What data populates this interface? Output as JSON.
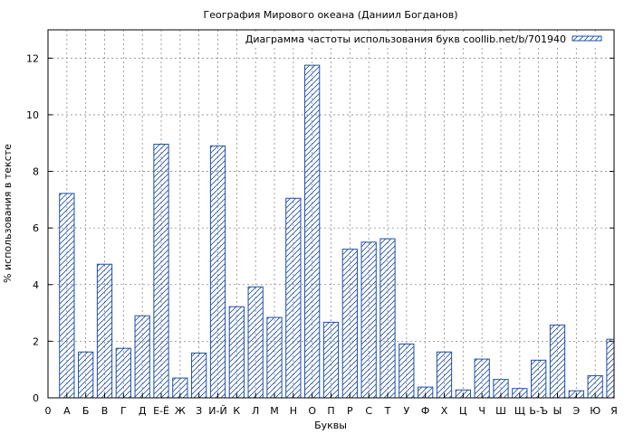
{
  "chart_data": {
    "type": "bar",
    "title": "География Мирового океана (Даниил Богданов)",
    "xlabel": "Буквы",
    "ylabel": "% использования в тексте",
    "legend": {
      "label": "Диаграмма частоты использования букв coollib.net/b/701940",
      "position": "top-right"
    },
    "ylim": [
      0,
      13
    ],
    "yticks": [
      0,
      2,
      4,
      6,
      8,
      10,
      12
    ],
    "grid": true,
    "colors": {
      "bar_stroke": "#1f4fa8",
      "grid": "#888888"
    },
    "x_start_label": "0",
    "categories": [
      "А",
      "Б",
      "В",
      "Г",
      "Д",
      "Е-Ё",
      "Ж",
      "З",
      "И-Й",
      "К",
      "Л",
      "М",
      "Н",
      "О",
      "П",
      "Р",
      "С",
      "Т",
      "У",
      "Ф",
      "Х",
      "Ц",
      "Ч",
      "Ш",
      "Щ",
      "Ь-Ъ",
      "Ы",
      "Э",
      "Ю",
      "Я"
    ],
    "values": [
      7.22,
      1.62,
      4.72,
      1.75,
      2.9,
      8.96,
      0.7,
      1.58,
      8.9,
      3.22,
      3.92,
      2.84,
      7.05,
      11.75,
      2.67,
      5.25,
      5.5,
      5.62,
      1.9,
      0.38,
      1.62,
      0.28,
      1.37,
      0.65,
      0.33,
      1.33,
      2.57,
      0.25,
      0.78,
      2.07
    ]
  }
}
